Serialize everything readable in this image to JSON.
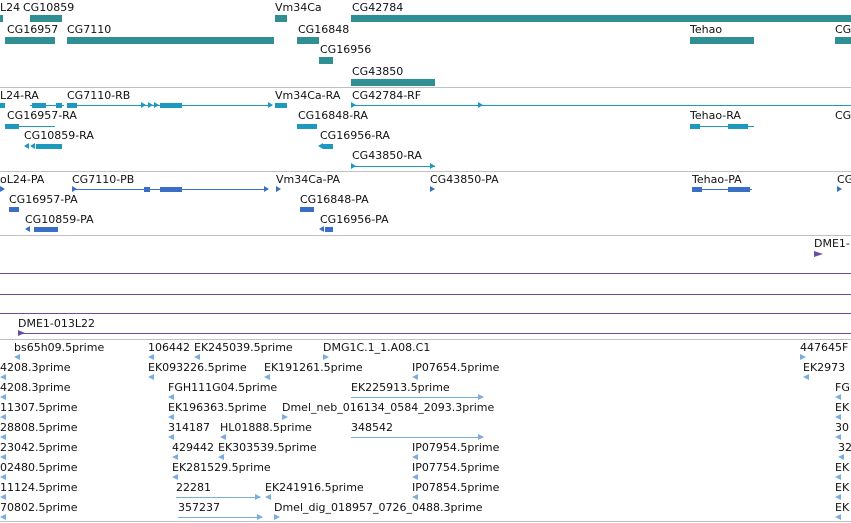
{
  "colors": {
    "gene": "#2f8f92",
    "transcript_rna": "#1c99bd",
    "transcript_protein": "#3a6fc7",
    "region": "#6a4fa0",
    "est": "#7aaede",
    "separator": "#c0c0c0"
  },
  "tracks": {
    "genes": {
      "labels": [
        "L24",
        "CG10859",
        "Vm34Ca",
        "CG42784",
        "CG16957",
        "CG7110",
        "CG16848",
        "Tehao",
        "CG",
        "CG16956",
        "CG43850"
      ]
    },
    "rna": {
      "labels": [
        "L24-RA",
        "CG7110-RB",
        "Vm34Ca-RA",
        "CG42784-RF",
        "CG16957-RA",
        "CG16848-RA",
        "Tehao-RA",
        "CG",
        "CG10859-RA",
        "CG16956-RA",
        "CG43850-RA"
      ]
    },
    "protein": {
      "labels": [
        "oL24-PA",
        "CG7110-PB",
        "Vm34Ca-PA",
        "CG43850-PA",
        "Tehao-PA",
        "CG",
        "CG16957-PA",
        "CG16848-PA",
        "CG10859-PA",
        "CG16956-PA"
      ]
    },
    "regions": {
      "labels": [
        "DME1-",
        "DME1-013L22"
      ]
    },
    "ests": {
      "labels": [
        "bs65h09.5prime",
        "106442",
        "EK245039.5prime",
        "DMG1C.1_1.A08.C1",
        "447645F",
        "4208.3prime",
        "EK093226.5prime",
        "EK191261.5prime",
        "IP07654.5prime",
        "EK2973",
        "4208.3prime",
        "FGH111G04.5prime",
        "EK225913.5prime",
        "FGH",
        "11307.5prime",
        "EK196363.5prime",
        "Dmel_neb_016134_0584_2093.3prime",
        "EK",
        "28808.5prime",
        "314187",
        "HL01888.5prime",
        "348542",
        "30",
        "23042.5prime",
        "429442",
        "EK303539.5prime",
        "IP07954.5prime",
        "32",
        "02480.5prime",
        "EK281529.5prime",
        "IP07754.5prime",
        "EK",
        "11124.5prime",
        "22281",
        "EK241916.5prime",
        "IP07854.5prime",
        "EK",
        "70802.5prime",
        "357237",
        "Dmel_dig_018957_0726_0488.3prime",
        "EK"
      ]
    }
  }
}
